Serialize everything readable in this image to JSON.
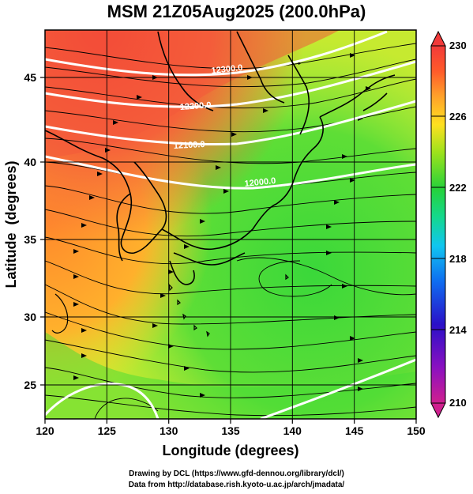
{
  "title": "MSM 21Z05Aug2025 (200.0hPa)",
  "axes": {
    "xlabel": "Longitude (degrees)",
    "ylabel": "Latitude  (degrees)",
    "xlim": [
      120,
      150
    ],
    "ylim": [
      22.4,
      47.6
    ],
    "xticks": [
      "120",
      "125",
      "130",
      "135",
      "140",
      "145",
      "150"
    ],
    "yticks": [
      "25",
      "30",
      "35",
      "40",
      "45"
    ]
  },
  "colorbar": {
    "ticks": [
      "230",
      "226",
      "222",
      "218",
      "214",
      "210"
    ],
    "range": [
      210,
      230
    ],
    "colors": [
      "#d0208f",
      "#8a10c0",
      "#2a10c8",
      "#0f6cf0",
      "#10c6f0",
      "#14d88e",
      "#26d23a",
      "#9be21c",
      "#ffe020",
      "#ffa02a",
      "#ff5a2a",
      "#f23a3a"
    ]
  },
  "contour_labels": [
    "12300.0",
    "12200.0",
    "12100.0",
    "12000.0"
  ],
  "field_colors": {
    "north_west": "#f43c36",
    "west_orange": "#ff9a2c",
    "yellow": "#e4ee2c",
    "green": "#46dc36",
    "green_light": "#8ee63a"
  },
  "footer": {
    "line1": "Drawing by DCL (https://www.gfd-dennou.org/library/dcl/)",
    "line2": "Data from http://database.rish.kyoto-u.ac.jp/arch/jmadata/"
  }
}
